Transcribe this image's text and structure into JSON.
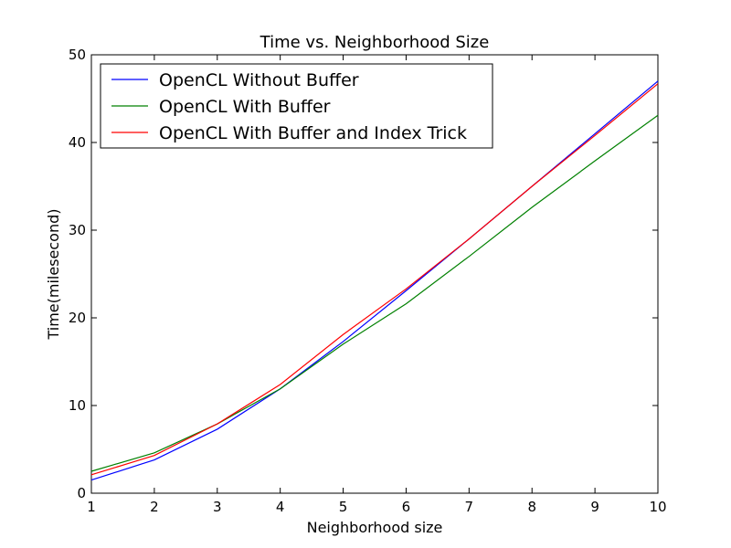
{
  "chart_data": {
    "type": "line",
    "title": "Time vs. Neighborhood Size",
    "xlabel": "Neighborhood size",
    "ylabel": "Time(milesecond)",
    "xlim": [
      1,
      10
    ],
    "ylim": [
      0,
      50
    ],
    "x": [
      1,
      2,
      3,
      4,
      5,
      6,
      7,
      8,
      9,
      10
    ],
    "x_ticks": [
      "1",
      "2",
      "3",
      "4",
      "5",
      "6",
      "7",
      "8",
      "9",
      "10"
    ],
    "y_ticks": [
      "0",
      "10",
      "20",
      "30",
      "40",
      "50"
    ],
    "grid": false,
    "legend_position": "top-left",
    "series": [
      {
        "name": "OpenCL Without Buffer",
        "color": "#0000ff",
        "values": [
          1.5,
          3.8,
          7.3,
          11.9,
          17.3,
          23.1,
          29.0,
          35.0,
          41.0,
          47.0
        ]
      },
      {
        "name": "OpenCL With Buffer",
        "color": "#008000",
        "values": [
          2.5,
          4.6,
          7.9,
          11.9,
          17.0,
          21.6,
          27.0,
          32.6,
          37.9,
          43.1
        ]
      },
      {
        "name": "OpenCL With Buffer and Index Trick",
        "color": "#ff0000",
        "values": [
          2.1,
          4.3,
          7.9,
          12.4,
          18.1,
          23.3,
          29.0,
          35.0,
          40.8,
          46.7
        ]
      }
    ]
  }
}
